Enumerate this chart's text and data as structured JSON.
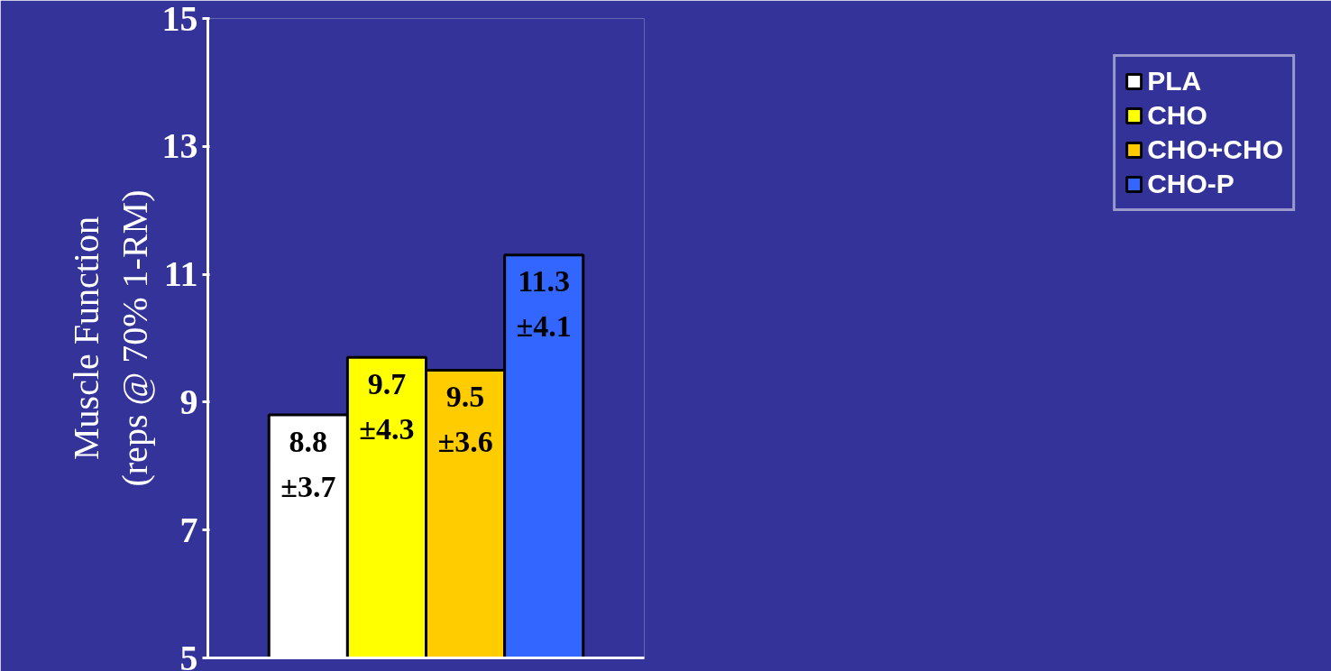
{
  "chart_data": {
    "type": "bar",
    "ylabel": "Muscle Function\n(reps @ 70% 1-RM)",
    "categories": [
      null
    ],
    "series": [
      {
        "name": "PLA",
        "color": "#ffffff",
        "values": [
          8.8
        ],
        "value_labels": [
          "8.8\n±3.7"
        ]
      },
      {
        "name": "CHO",
        "color": "#ffff00",
        "values": [
          9.7
        ],
        "value_labels": [
          "9.7\n±4.3"
        ]
      },
      {
        "name": "CHO+CHO",
        "color": "#ffcc00",
        "values": [
          9.5
        ],
        "value_labels": [
          "9.5\n±3.6"
        ]
      },
      {
        "name": "CHO-P",
        "color": "#3366ff",
        "values": [
          11.3
        ],
        "value_labels": [
          "11.3\n±4.1"
        ]
      }
    ],
    "ylim": [
      5,
      15
    ],
    "yticks": [
      5,
      7,
      9,
      11,
      13,
      15
    ],
    "grid": false,
    "legend": "right"
  }
}
